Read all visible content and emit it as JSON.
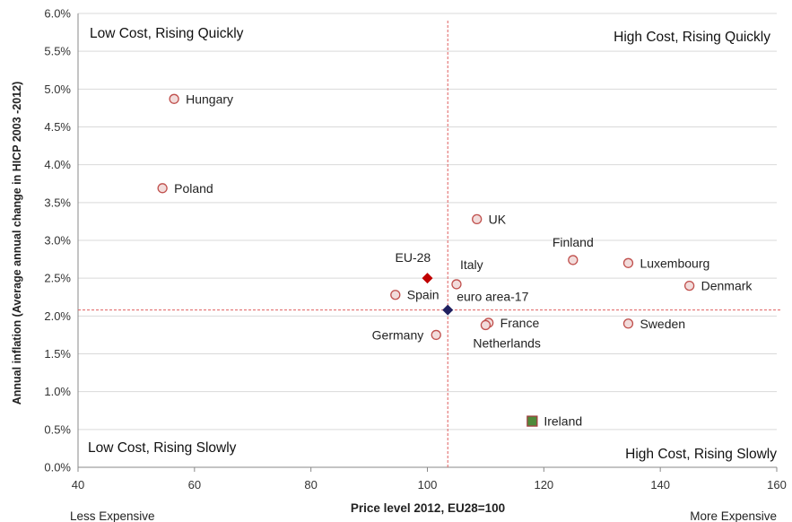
{
  "chart_data": {
    "type": "scatter",
    "title": "",
    "xlabel": "Price level 2012, EU28=100",
    "ylabel": "Annual inflation (Average annual change in HICP 2003 -2012)",
    "xlim": [
      40,
      160
    ],
    "ylim": [
      0,
      6
    ],
    "x_ticks": [
      "40",
      "60",
      "80",
      "100",
      "120",
      "140",
      "160"
    ],
    "y_ticks": [
      "0.0%",
      "0.5%",
      "1.0%",
      "1.5%",
      "2.0%",
      "2.5%",
      "3.0%",
      "3.5%",
      "4.0%",
      "4.5%",
      "5.0%",
      "5.5%",
      "6.0%"
    ],
    "grid": "horizontal",
    "x_axis_end_labels": {
      "left": "Less Expensive",
      "right": "More Expensive"
    },
    "quadrant_labels": {
      "top_left": "Low Cost, Rising Quickly",
      "top_right": "High Cost, Rising Quickly",
      "bottom_left": "Low Cost, Rising Slowly",
      "bottom_right": "High Cost, Rising Slowly"
    },
    "reference_lines": {
      "x": 103.5,
      "y": 2.08
    },
    "points": [
      {
        "label": "Hungary",
        "x": 56.5,
        "y": 4.87,
        "marker": "circle",
        "label_pos": "right"
      },
      {
        "label": "Poland",
        "x": 54.5,
        "y": 3.69,
        "marker": "circle",
        "label_pos": "right"
      },
      {
        "label": "UK",
        "x": 108.5,
        "y": 3.28,
        "marker": "circle",
        "label_pos": "right"
      },
      {
        "label": "Finland",
        "x": 125,
        "y": 2.74,
        "marker": "circle",
        "label_pos": "above"
      },
      {
        "label": "Luxembourg",
        "x": 134.5,
        "y": 2.7,
        "marker": "circle",
        "label_pos": "right"
      },
      {
        "label": "Denmark",
        "x": 145,
        "y": 2.4,
        "marker": "circle",
        "label_pos": "right"
      },
      {
        "label": "Italy",
        "x": 105,
        "y": 2.42,
        "marker": "circle",
        "label_pos": "above-right"
      },
      {
        "label": "Spain",
        "x": 94.5,
        "y": 2.28,
        "marker": "circle",
        "label_pos": "right"
      },
      {
        "label": "France",
        "x": 110.5,
        "y": 1.91,
        "marker": "circle",
        "label_pos": "right"
      },
      {
        "label": "Netherlands",
        "x": 110,
        "y": 1.88,
        "marker": "circle",
        "label_pos": "below"
      },
      {
        "label": "Sweden",
        "x": 134.5,
        "y": 1.9,
        "marker": "circle",
        "label_pos": "right"
      },
      {
        "label": "Germany",
        "x": 101.5,
        "y": 1.75,
        "marker": "circle",
        "label_pos": "left"
      },
      {
        "label": "EU-28",
        "x": 100,
        "y": 2.5,
        "marker": "diamond-red",
        "label_pos": "above-left"
      },
      {
        "label": "euro area-17",
        "x": 103.5,
        "y": 2.08,
        "marker": "diamond-navy",
        "label_pos": "above-right"
      },
      {
        "label": "Ireland",
        "x": 118,
        "y": 0.61,
        "marker": "square-green",
        "label_pos": "right"
      }
    ],
    "colors": {
      "circle_stroke": "#c0504d",
      "circle_fill": "#f2dcdb",
      "eu28": "#c00000",
      "euro_area": "#1f2060",
      "ireland_fill": "#4f8a3a",
      "ireland_stroke": "#a04040",
      "reference_line": "#e06060",
      "grid": "#d9d9d9",
      "axis": "#888888"
    }
  }
}
